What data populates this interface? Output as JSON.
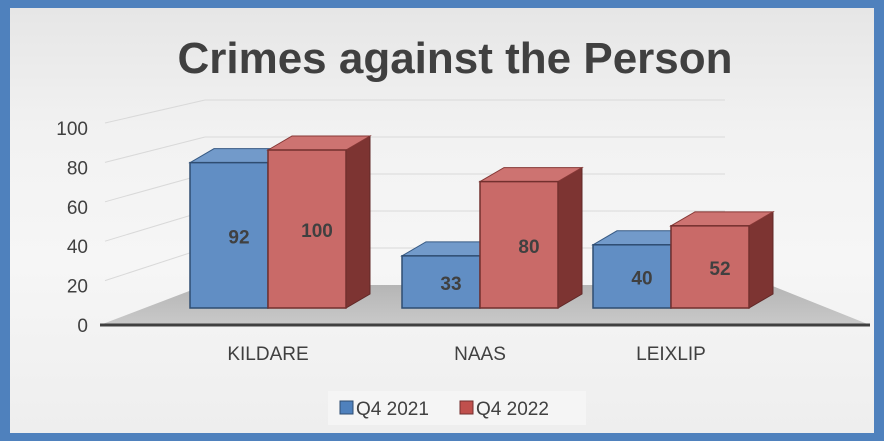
{
  "chart_data": {
    "type": "bar",
    "title": "Crimes against the Person",
    "categories": [
      "KILDARE",
      "NAAS",
      "LEIXLIP"
    ],
    "series": [
      {
        "name": "Q4 2021",
        "values": [
          92,
          33,
          40
        ],
        "color": "#4f81bd"
      },
      {
        "name": "Q4 2022",
        "values": [
          100,
          80,
          52
        ],
        "color": "#c0504d"
      }
    ],
    "ylim": [
      0,
      100
    ],
    "yticks": [
      "0",
      "20",
      "40",
      "60",
      "80",
      "100"
    ],
    "grid": true,
    "legend": "bottom",
    "style": "3d-clustered-column"
  }
}
